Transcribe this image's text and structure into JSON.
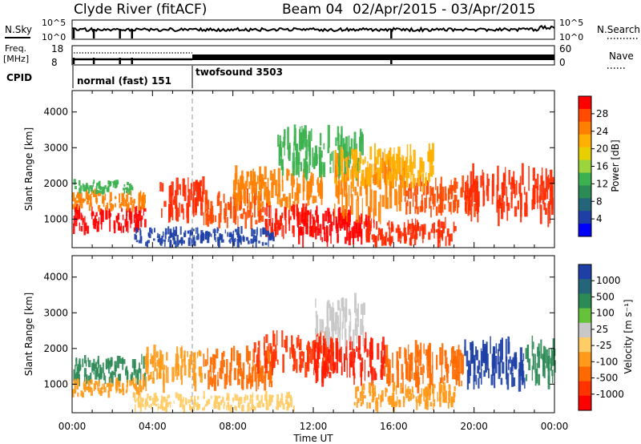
{
  "header": {
    "station": "Clyde River (fitACF)",
    "beam": "Beam 04",
    "date_range": "02/Apr/2015 - 03/Apr/2015"
  },
  "noise_panel": {
    "left_label": "N.Sky",
    "right_label": "N.Search",
    "left_ticks": [
      "10^5",
      "10^0"
    ],
    "right_ticks": [
      "10^5",
      "10^0"
    ]
  },
  "freq_panel": {
    "left_label_line1": "Freq.",
    "left_label_line2": "[MHz]",
    "left_ticks": [
      "18",
      "8"
    ],
    "right_label": "Nave",
    "right_ticks": [
      "60",
      "0"
    ]
  },
  "cpid": {
    "label": "CPID",
    "modes": [
      {
        "name": "normal (fast) 151"
      },
      {
        "name": "twofsound 3503"
      }
    ]
  },
  "power_colorbar": {
    "title": "Power [dB]",
    "ticks": [
      "28",
      "24",
      "20",
      "16",
      "12",
      "8",
      "4"
    ],
    "colors": [
      "#ff0000",
      "#ff4a00",
      "#ff7f00",
      "#ffb000",
      "#e8d000",
      "#9bd43c",
      "#3cb14f",
      "#2c8a55",
      "#25657a",
      "#1d3fa6",
      "#0000ff"
    ]
  },
  "velocity_colorbar": {
    "title": "Velocity [m s⁻¹]",
    "ticks": [
      "1000",
      "500",
      "100",
      "25",
      "-25",
      "-100",
      "-500",
      "-1000"
    ],
    "colors": [
      "#1d3fa6",
      "#25657a",
      "#2c8a55",
      "#66c23a",
      "#c8c8c8",
      "#ffcc66",
      "#ff9a1a",
      "#ff6a00",
      "#ff3300",
      "#ff0000"
    ]
  },
  "chart_data": [
    {
      "type": "heatmap",
      "name": "power",
      "ylabel": "Slant Range [km]",
      "xlabel": "Time UT",
      "ylim": [
        200,
        4600
      ],
      "xlim": [
        0,
        24
      ],
      "xticks": [
        "00:00",
        "04:00",
        "08:00",
        "12:00",
        "16:00",
        "20:00",
        "00:00"
      ],
      "yticks": [
        "1000",
        "2000",
        "3000",
        "4000"
      ]
    },
    {
      "type": "heatmap",
      "name": "velocity",
      "ylabel": "Slant Range [km]",
      "xlabel": "Time UT",
      "ylim": [
        200,
        4600
      ],
      "xlim": [
        0,
        24
      ],
      "xticks": [
        "00:00",
        "04:00",
        "08:00",
        "12:00",
        "16:00",
        "20:00",
        "00:00"
      ],
      "yticks": [
        "1000",
        "2000",
        "3000",
        "4000"
      ]
    }
  ],
  "mode_change_hour": 6,
  "blobs": {
    "power": [
      {
        "h0": 0.0,
        "h1": 3.6,
        "r0": 700,
        "r1": 1300,
        "c": "#ff0000"
      },
      {
        "h0": 0.0,
        "h1": 3.6,
        "r0": 1300,
        "r1": 1750,
        "c": "#ff7f00"
      },
      {
        "h0": 0.0,
        "h1": 3.0,
        "r0": 1750,
        "r1": 2050,
        "c": "#3cb14f"
      },
      {
        "h0": 4.3,
        "h1": 6.5,
        "r0": 1100,
        "r1": 2050,
        "c": "#ff2a00"
      },
      {
        "h0": 6.5,
        "h1": 9.5,
        "r0": 900,
        "r1": 1700,
        "c": "#ff4a00"
      },
      {
        "h0": 8.0,
        "h1": 12.5,
        "r0": 1400,
        "r1": 2300,
        "c": "#ff7f00"
      },
      {
        "h0": 9.5,
        "h1": 12.0,
        "r0": 600,
        "r1": 1300,
        "c": "#ff1a00"
      },
      {
        "h0": 11.0,
        "h1": 15.0,
        "r0": 400,
        "r1": 1200,
        "c": "#ff0000"
      },
      {
        "h0": 13.0,
        "h1": 16.5,
        "r0": 1200,
        "r1": 2600,
        "c": "#ff7f00"
      },
      {
        "h0": 14.5,
        "h1": 19.0,
        "r0": 350,
        "r1": 900,
        "c": "#ff2a00"
      },
      {
        "h0": 16.5,
        "h1": 20.0,
        "r0": 1200,
        "r1": 2000,
        "c": "#ff4a00"
      },
      {
        "h0": 19.5,
        "h1": 24.0,
        "r0": 1100,
        "r1": 2300,
        "c": "#ff2a00"
      },
      {
        "h0": 10.0,
        "h1": 14.5,
        "r0": 2300,
        "r1": 3400,
        "c": "#3cb14f"
      },
      {
        "h0": 13.0,
        "h1": 18.0,
        "r0": 2000,
        "r1": 2900,
        "c": "#ffb000"
      },
      {
        "h0": 3.0,
        "h1": 10.0,
        "r0": 300,
        "r1": 700,
        "c": "#1d3fa6"
      }
    ],
    "velocity": [
      {
        "h0": 0.0,
        "h1": 3.6,
        "r0": 1100,
        "r1": 1700,
        "c": "#2c8a55"
      },
      {
        "h0": 0.0,
        "h1": 3.6,
        "r0": 700,
        "r1": 1100,
        "c": "#ff9a1a"
      },
      {
        "h0": 3.5,
        "h1": 6.5,
        "r0": 1000,
        "r1": 1900,
        "c": "#ff9a1a"
      },
      {
        "h0": 6.5,
        "h1": 10.0,
        "r0": 1000,
        "r1": 1900,
        "c": "#ff6a00"
      },
      {
        "h0": 9.0,
        "h1": 13.0,
        "r0": 1400,
        "r1": 2300,
        "c": "#ff3300"
      },
      {
        "h0": 12.0,
        "h1": 15.5,
        "r0": 1200,
        "r1": 2200,
        "c": "#ff1a00"
      },
      {
        "h0": 14.0,
        "h1": 19.0,
        "r0": 350,
        "r1": 950,
        "c": "#ff9a1a"
      },
      {
        "h0": 15.5,
        "h1": 19.5,
        "r0": 1000,
        "r1": 2000,
        "c": "#ff6a00"
      },
      {
        "h0": 19.5,
        "h1": 22.5,
        "r0": 1000,
        "r1": 2100,
        "c": "#1d3fa6"
      },
      {
        "h0": 22.5,
        "h1": 24.0,
        "r0": 1100,
        "r1": 2100,
        "c": "#2c8a55"
      },
      {
        "h0": 12.0,
        "h1": 14.5,
        "r0": 2200,
        "r1": 3300,
        "c": "#c8c8c8"
      },
      {
        "h0": 3.0,
        "h1": 11.0,
        "r0": 300,
        "r1": 700,
        "c": "#ffcc66"
      }
    ]
  }
}
